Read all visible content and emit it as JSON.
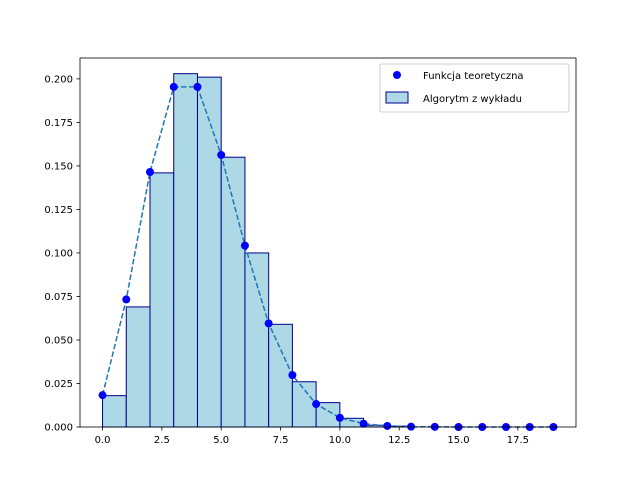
{
  "chart_data": {
    "type": "bar",
    "x_range": [
      -0.95,
      19.95
    ],
    "ylim": [
      0,
      0.212
    ],
    "x_ticks": [
      0,
      2.5,
      5,
      7.5,
      10,
      12.5,
      15,
      17.5
    ],
    "y_ticks": [
      0,
      0.025,
      0.05,
      0.075,
      0.1,
      0.125,
      0.15,
      0.175,
      0.2
    ],
    "x_tick_labels": [
      "0.0",
      "2.5",
      "5.0",
      "7.5",
      "10.0",
      "12.5",
      "15.0",
      "17.5"
    ],
    "y_tick_labels": [
      "0.000",
      "0.025",
      "0.050",
      "0.075",
      "0.100",
      "0.125",
      "0.150",
      "0.175",
      "0.200"
    ],
    "grid": false,
    "legend_position": "top-right",
    "series": [
      {
        "name": "Algorytm z wykładu",
        "kind": "histogram",
        "bin_edges": [
          0,
          1,
          2,
          3,
          4,
          5,
          6,
          7,
          8,
          9,
          10,
          11,
          12,
          13,
          14,
          15,
          16,
          17,
          18,
          19
        ],
        "values": [
          0.018,
          0.069,
          0.146,
          0.203,
          0.201,
          0.155,
          0.1,
          0.059,
          0.026,
          0.014,
          0.005,
          0.001,
          0.0005,
          0,
          0,
          0,
          0,
          0,
          0
        ],
        "fill_color": "#add8e6",
        "edge_color": "#00008b"
      },
      {
        "name": "Funkcja teoretyczna",
        "kind": "points",
        "x": [
          0,
          1,
          2,
          3,
          4,
          5,
          6,
          7,
          8,
          9,
          10,
          11,
          12,
          13,
          14,
          15,
          16,
          17,
          18,
          19
        ],
        "y": [
          0.0183,
          0.0733,
          0.1465,
          0.1954,
          0.1954,
          0.1563,
          0.1042,
          0.0595,
          0.0298,
          0.0132,
          0.0053,
          0.0019,
          0.0006,
          0.0002,
          0.0001,
          0,
          0,
          0,
          0,
          0
        ],
        "marker_color": "#0000ff",
        "line_color": "#1f77b4",
        "line_style": "dashed"
      }
    ]
  }
}
